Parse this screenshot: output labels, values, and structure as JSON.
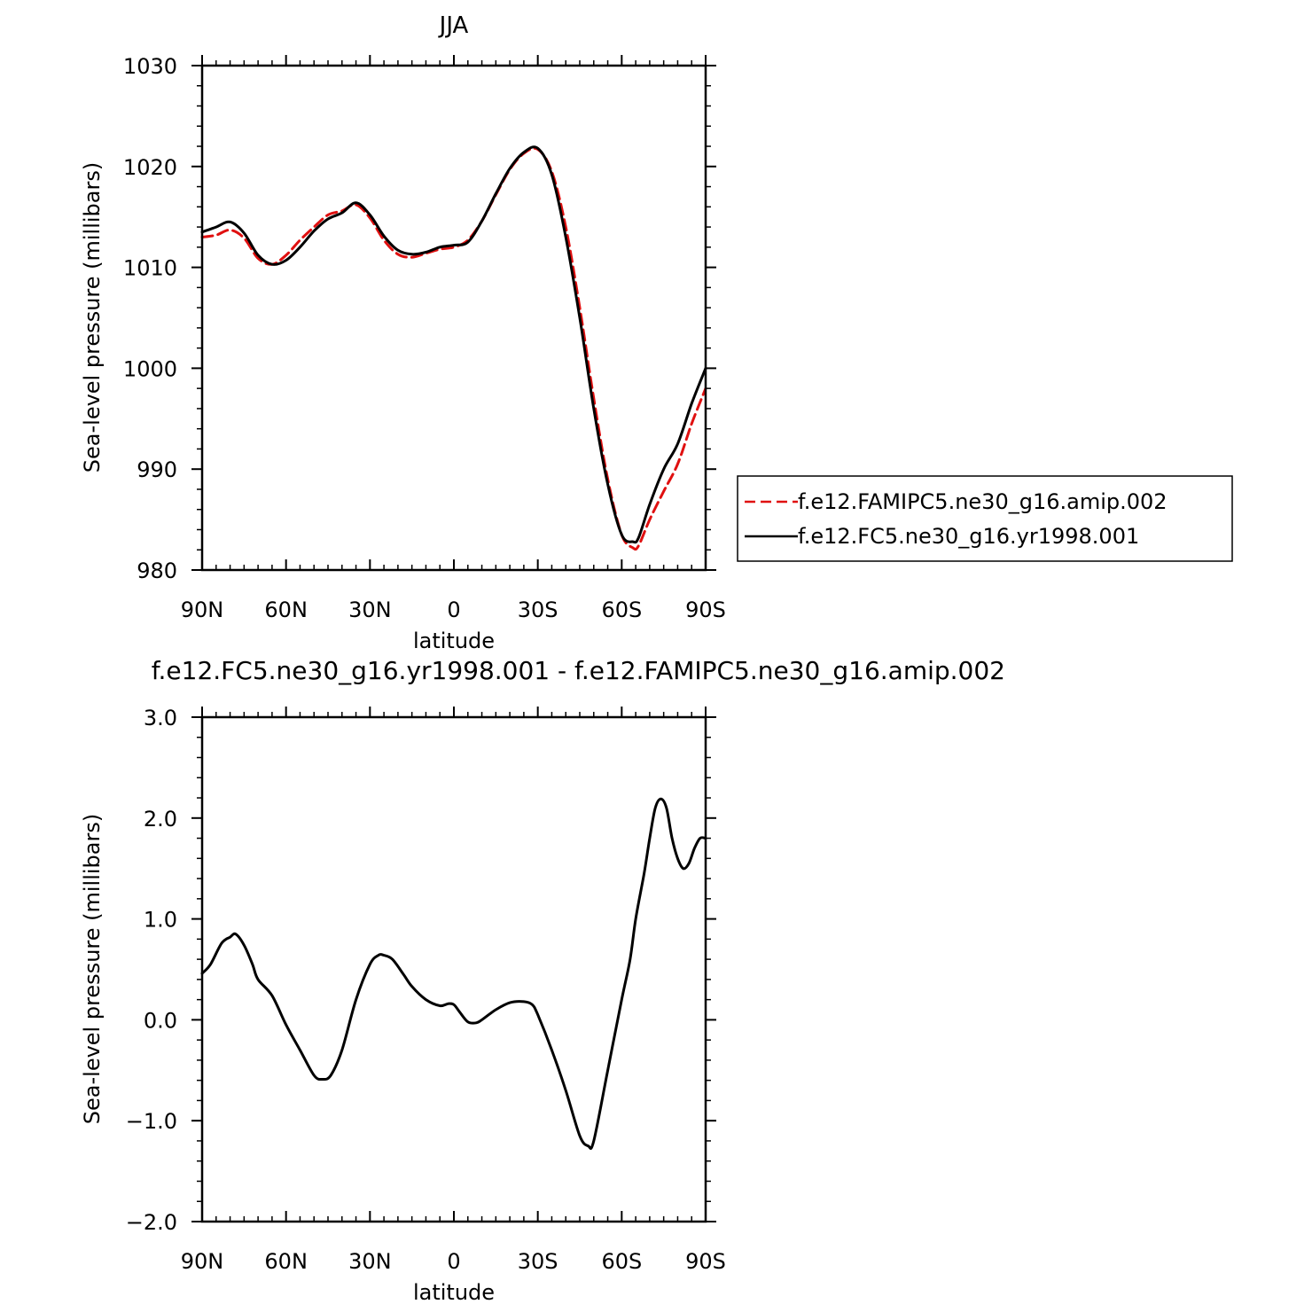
{
  "colors": {
    "model_a": "#e01010",
    "model_b": "#000000",
    "axis": "#000000",
    "background": "#ffffff"
  },
  "chart_data": [
    {
      "type": "line",
      "title": "JJA",
      "xlabel": "latitude",
      "ylabel": "Sea-level pressure (millibars)",
      "xlim": [
        90,
        -90
      ],
      "ylim": [
        980,
        1030
      ],
      "xticks": [
        90,
        60,
        30,
        0,
        -30,
        -60,
        -90
      ],
      "xtick_labels": [
        "90N",
        "60N",
        "30N",
        "0",
        "30S",
        "60S",
        "90S"
      ],
      "yticks": [
        980,
        990,
        1000,
        1010,
        1020,
        1030
      ],
      "ytick_labels": [
        "980",
        "990",
        "1000",
        "1010",
        "1020",
        "1030"
      ],
      "grid": false,
      "legend_position": "right",
      "series": [
        {
          "name": "f.e12.FAMIPC5.ne30_g16.amip.002",
          "color": "#e01010",
          "dash": "dashed",
          "x": [
            90,
            85,
            80,
            75,
            70,
            65,
            60,
            55,
            50,
            45,
            40,
            35,
            30,
            25,
            20,
            15,
            10,
            5,
            0,
            -5,
            -10,
            -15,
            -20,
            -25,
            -30,
            -35,
            -40,
            -45,
            -50,
            -55,
            -60,
            -64,
            -66,
            -70,
            -75,
            -80,
            -85,
            -90
          ],
          "y": [
            1013.0,
            1013.2,
            1013.7,
            1012.9,
            1010.9,
            1010.3,
            1011.2,
            1012.7,
            1014.0,
            1015.2,
            1015.6,
            1016.2,
            1014.9,
            1012.7,
            1011.3,
            1011.0,
            1011.4,
            1011.8,
            1012.0,
            1012.7,
            1014.6,
            1017.2,
            1019.7,
            1021.3,
            1021.7,
            1019.5,
            1014.0,
            1006.0,
            997.0,
            989.0,
            983.5,
            982.2,
            982.4,
            985.0,
            987.8,
            990.5,
            994.5,
            998.0
          ]
        },
        {
          "name": "f.e12.FC5.ne30_g16.yr1998.001",
          "color": "#000000",
          "dash": "solid",
          "x": [
            90,
            85,
            80,
            75,
            70,
            65,
            60,
            55,
            50,
            45,
            40,
            35,
            30,
            25,
            20,
            15,
            10,
            5,
            0,
            -5,
            -10,
            -15,
            -20,
            -25,
            -30,
            -35,
            -40,
            -45,
            -50,
            -55,
            -60,
            -64,
            -66,
            -70,
            -75,
            -80,
            -85,
            -90
          ],
          "y": [
            1013.5,
            1014.0,
            1014.5,
            1013.4,
            1011.2,
            1010.3,
            1010.7,
            1012.0,
            1013.6,
            1014.8,
            1015.4,
            1016.4,
            1015.2,
            1013.1,
            1011.7,
            1011.3,
            1011.5,
            1012.0,
            1012.2,
            1012.5,
            1014.6,
            1017.3,
            1019.8,
            1021.4,
            1021.8,
            1019.2,
            1013.0,
            1005.0,
            996.0,
            988.5,
            983.5,
            982.8,
            983.2,
            986.5,
            990.0,
            992.5,
            996.5,
            1000.0
          ]
        }
      ]
    },
    {
      "type": "line",
      "title": "f.e12.FC5.ne30_g16.yr1998.001 - f.e12.FAMIPC5.ne30_g16.amip.002",
      "xlabel": "latitude",
      "ylabel": "Sea-level pressure (millibars)",
      "xlim": [
        90,
        -90
      ],
      "ylim": [
        -2.0,
        3.0
      ],
      "xticks": [
        90,
        60,
        30,
        0,
        -30,
        -60,
        -90
      ],
      "xtick_labels": [
        "90N",
        "60N",
        "30N",
        "0",
        "30S",
        "60S",
        "90S"
      ],
      "yticks": [
        -2.0,
        -1.0,
        0.0,
        1.0,
        2.0,
        3.0
      ],
      "ytick_labels": [
        "−2.0",
        "−1.0",
        "0.0",
        "1.0",
        "2.0",
        "3.0"
      ],
      "grid": false,
      "series": [
        {
          "color": "#000000",
          "dash": "solid",
          "x": [
            90,
            87,
            83,
            80,
            78,
            75,
            72,
            70,
            65,
            60,
            55,
            50,
            47,
            44,
            40,
            35,
            30,
            27,
            25,
            22,
            18,
            15,
            10,
            5,
            2,
            0,
            -2,
            -5,
            -8,
            -10,
            -15,
            -20,
            -25,
            -28,
            -30,
            -35,
            -40,
            -45,
            -48,
            -50,
            -55,
            -60,
            -63,
            -65,
            -68,
            -70,
            -72,
            -74,
            -76,
            -78,
            -80,
            -82,
            -84,
            -86,
            -88,
            -90
          ],
          "y": [
            0.46,
            0.55,
            0.76,
            0.82,
            0.85,
            0.74,
            0.55,
            0.4,
            0.24,
            -0.05,
            -0.3,
            -0.55,
            -0.59,
            -0.55,
            -0.3,
            0.2,
            0.55,
            0.64,
            0.64,
            0.6,
            0.45,
            0.33,
            0.2,
            0.14,
            0.16,
            0.15,
            0.08,
            -0.02,
            -0.03,
            0.0,
            0.1,
            0.17,
            0.18,
            0.15,
            0.05,
            -0.3,
            -0.7,
            -1.15,
            -1.25,
            -1.2,
            -0.5,
            0.2,
            0.6,
            1.0,
            1.45,
            1.8,
            2.1,
            2.19,
            2.1,
            1.8,
            1.6,
            1.5,
            1.55,
            1.7,
            1.8,
            1.8
          ]
        }
      ]
    }
  ]
}
